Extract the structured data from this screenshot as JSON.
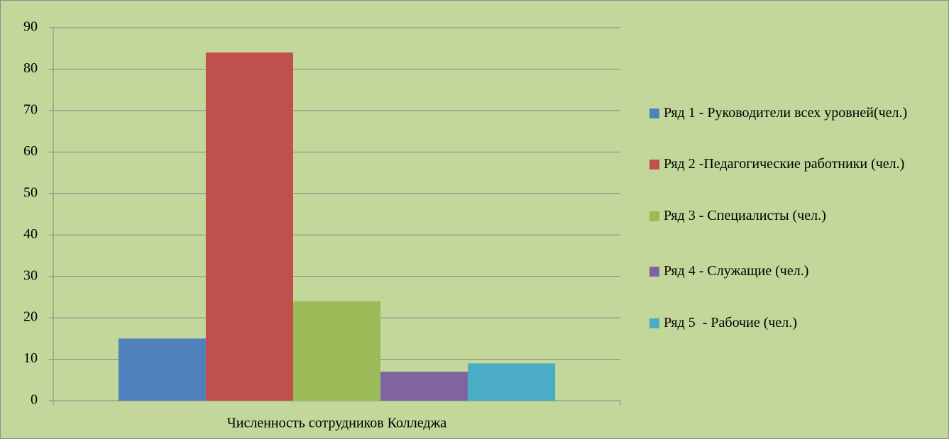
{
  "chart_data": {
    "type": "bar",
    "categories": [
      "Численность сотрудников Колледжа"
    ],
    "series": [
      {
        "name": "Ряд 1 - Руководители всех уровней(чел.)",
        "color": "#4f81bd",
        "values": [
          15
        ]
      },
      {
        "name": "Ряд 2 -Педагогические работники (чел.)",
        "color": "#c0504d",
        "values": [
          84
        ]
      },
      {
        "name": "Ряд 3 - Специалисты (чел.)",
        "color": "#9bbb59",
        "values": [
          24
        ]
      },
      {
        "name": "Ряд 4 - Служащие (чел.)",
        "color": "#8064a2",
        "values": [
          7
        ]
      },
      {
        "name": "Ряд 5  - Рабочие (чел.)",
        "color": "#4bacc6",
        "values": [
          9
        ]
      }
    ],
    "ylim": [
      0,
      90
    ],
    "yticks": [
      0,
      10,
      20,
      30,
      40,
      50,
      60,
      70,
      80,
      90
    ],
    "grid": true,
    "legend": "right"
  }
}
